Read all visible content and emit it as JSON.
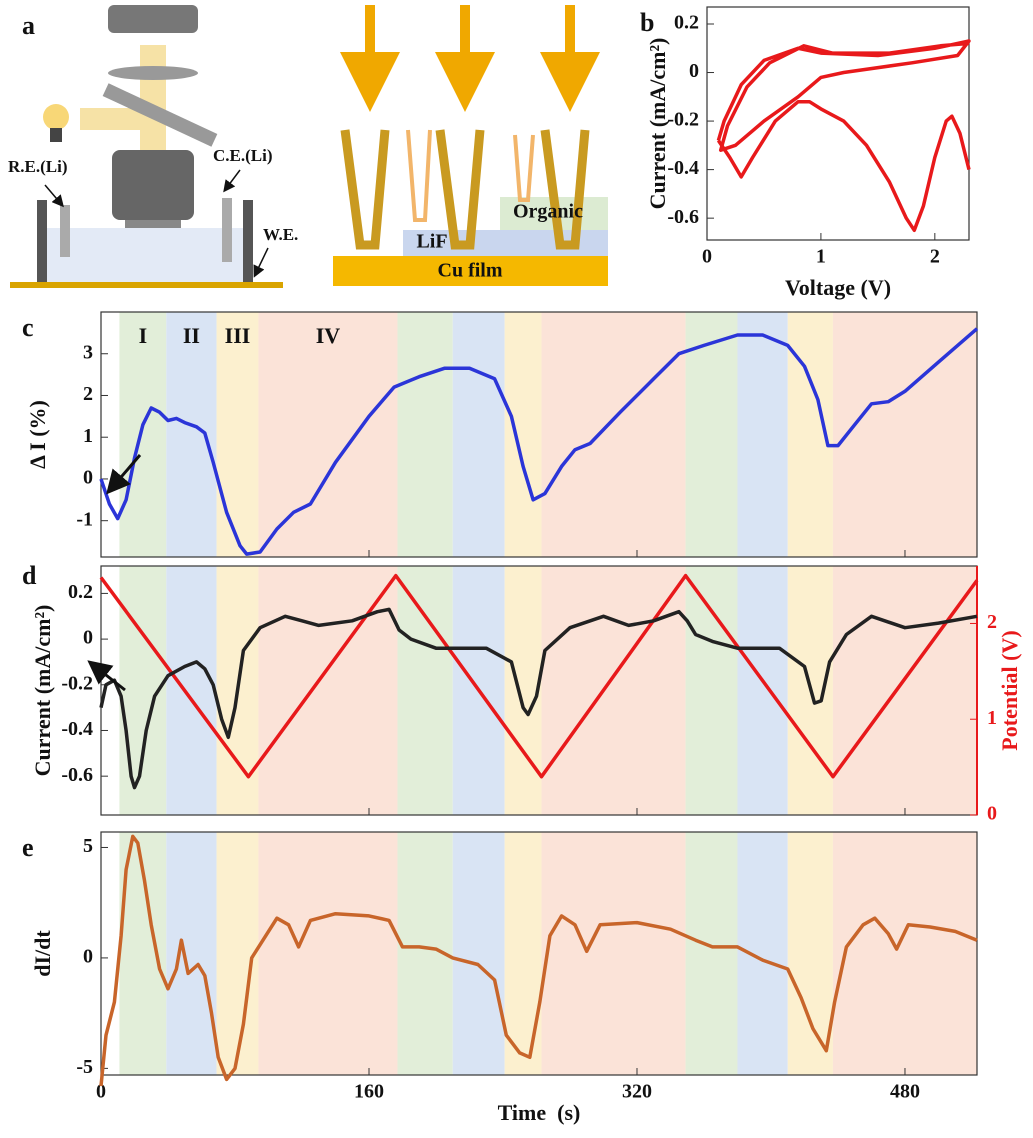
{
  "diagram": {
    "panel": "a",
    "reference_electrode": "R.E.(Li)",
    "counter_electrode": "C.E.(Li)",
    "working_electrode": "W.E.",
    "layer_organic": "Organic",
    "layer_lif": "LiF",
    "layer_cu": "Cu film"
  },
  "chart_data": [
    {
      "type": "line",
      "panel": "b",
      "xlabel": "Voltage (V)",
      "ylabel": "Current (mA/cm²)",
      "xlim": [
        0,
        2.3
      ],
      "ylim": [
        -0.69,
        0.27
      ],
      "xticks": [
        0,
        1,
        2
      ],
      "yticks": [
        0.2,
        0,
        -0.2,
        -0.4,
        -0.6
      ],
      "series": [
        {
          "color": "#e8191b",
          "x": [
            2.3,
            2.22,
            2.15,
            2.1,
            2.0,
            1.9,
            1.82,
            1.75,
            1.6,
            1.4,
            1.2,
            1.0,
            0.9,
            0.8,
            0.6,
            0.4,
            0.3,
            0.2,
            0.1
          ],
          "values": [
            -0.4,
            -0.25,
            -0.18,
            -0.2,
            -0.35,
            -0.55,
            -0.65,
            -0.6,
            -0.45,
            -0.3,
            -0.2,
            -0.15,
            -0.12,
            -0.12,
            -0.2,
            -0.35,
            -0.43,
            -0.35,
            -0.28
          ]
        },
        {
          "color": "#e8191b",
          "x": [
            0.1,
            0.15,
            0.3,
            0.5,
            0.8,
            1.0,
            1.5,
            2.0,
            2.3,
            2.2,
            1.8,
            1.2,
            1.0,
            0.8,
            0.5,
            0.25,
            0.12,
            0.18,
            0.35,
            0.55,
            0.85,
            1.1,
            1.6,
            2.05,
            2.3
          ],
          "values": [
            -0.28,
            -0.2,
            -0.05,
            0.05,
            0.1,
            0.08,
            0.07,
            0.1,
            0.13,
            0.07,
            0.04,
            0.0,
            -0.02,
            -0.1,
            -0.2,
            -0.3,
            -0.32,
            -0.22,
            -0.06,
            0.04,
            0.11,
            0.08,
            0.08,
            0.11,
            0.12
          ]
        }
      ]
    },
    {
      "type": "line",
      "panel": "c",
      "ylabel": "Δ I (%)",
      "xlim": [
        0,
        523
      ],
      "ylim": [
        -1.87,
        4.0
      ],
      "xticks": [
        0,
        160,
        320,
        480
      ],
      "xtick_labels": false,
      "yticks": [
        -1,
        0,
        1,
        2,
        3
      ],
      "regions": [
        {
          "start": 11,
          "end": 39,
          "color": "#e2eed9",
          "label": "I"
        },
        {
          "start": 39,
          "end": 69,
          "color": "#d9e4f4",
          "label": "II"
        },
        {
          "start": 69,
          "end": 94,
          "color": "#fcf0cf",
          "label": "III"
        },
        {
          "start": 94,
          "end": 177,
          "color": "#fbe3d8",
          "label": "IV"
        },
        {
          "start": 177,
          "end": 210,
          "color": "#e2eed9"
        },
        {
          "start": 210,
          "end": 241,
          "color": "#d9e4f4"
        },
        {
          "start": 241,
          "end": 263,
          "color": "#fcf0cf"
        },
        {
          "start": 263,
          "end": 349,
          "color": "#fbe3d8"
        },
        {
          "start": 349,
          "end": 380,
          "color": "#e2eed9"
        },
        {
          "start": 380,
          "end": 410,
          "color": "#d9e4f4"
        },
        {
          "start": 410,
          "end": 437,
          "color": "#fcf0cf"
        },
        {
          "start": 437,
          "end": 523,
          "color": "#fbe3d8"
        }
      ],
      "series": [
        {
          "color": "#2b35d8",
          "x": [
            0,
            5,
            10,
            15,
            20,
            25,
            30,
            35,
            40,
            45,
            50,
            57,
            62,
            67,
            75,
            83,
            87,
            95,
            105,
            115,
            125,
            140,
            160,
            175,
            190,
            205,
            220,
            235,
            245,
            252,
            258,
            265,
            275,
            283,
            292,
            310,
            330,
            345,
            360,
            380,
            395,
            410,
            420,
            428,
            434,
            440,
            450,
            460,
            470,
            480,
            500,
            523
          ],
          "values": [
            0,
            -0.6,
            -0.95,
            -0.5,
            0.5,
            1.3,
            1.7,
            1.6,
            1.4,
            1.45,
            1.35,
            1.25,
            1.1,
            0.4,
            -0.8,
            -1.6,
            -1.8,
            -1.75,
            -1.2,
            -0.8,
            -0.6,
            0.4,
            1.5,
            2.2,
            2.45,
            2.65,
            2.65,
            2.4,
            1.5,
            0.3,
            -0.5,
            -0.35,
            0.3,
            0.7,
            0.85,
            1.6,
            2.4,
            3.0,
            3.2,
            3.45,
            3.45,
            3.2,
            2.7,
            1.9,
            0.8,
            0.8,
            1.3,
            1.8,
            1.85,
            2.1,
            2.8,
            3.6
          ]
        }
      ]
    },
    {
      "type": "line",
      "panel": "d",
      "ylabel": "Current (mA/cm²)",
      "y2label": "Potential (V)",
      "y2color": "#e8191b",
      "xlim": [
        0,
        523
      ],
      "ylim": [
        -0.77,
        0.32
      ],
      "y2lim": [
        0,
        2.6
      ],
      "xticks": [
        0,
        160,
        320,
        480
      ],
      "xtick_labels": false,
      "yticks": [
        0.2,
        0,
        -0.2,
        -0.4,
        -0.6
      ],
      "y2ticks": [
        0,
        1,
        2
      ],
      "series": [
        {
          "color": "#e8191b",
          "axis": "y2",
          "x": [
            0,
            88,
            176,
            263,
            349,
            437,
            523
          ],
          "values": [
            2.48,
            0.4,
            2.5,
            0.4,
            2.5,
            0.4,
            2.45
          ]
        },
        {
          "color": "#222222",
          "x": [
            0,
            3,
            8,
            12,
            15,
            18,
            20,
            23,
            27,
            32,
            40,
            50,
            57,
            62,
            67,
            72,
            76,
            80,
            85,
            95,
            110,
            120,
            130,
            150,
            165,
            172,
            178,
            185,
            200,
            230,
            245,
            252,
            255,
            260,
            265,
            280,
            300,
            315,
            330,
            345,
            350,
            355,
            365,
            380,
            405,
            420,
            426,
            430,
            435,
            445,
            460,
            480,
            500,
            523
          ],
          "values": [
            -0.3,
            -0.2,
            -0.18,
            -0.25,
            -0.4,
            -0.6,
            -0.65,
            -0.6,
            -0.4,
            -0.25,
            -0.16,
            -0.12,
            -0.1,
            -0.13,
            -0.2,
            -0.35,
            -0.43,
            -0.3,
            -0.05,
            0.05,
            0.1,
            0.08,
            0.06,
            0.08,
            0.12,
            0.13,
            0.04,
            0.0,
            -0.04,
            -0.04,
            -0.1,
            -0.3,
            -0.33,
            -0.25,
            -0.05,
            0.05,
            0.1,
            0.06,
            0.08,
            0.12,
            0.08,
            0.02,
            -0.01,
            -0.04,
            -0.04,
            -0.12,
            -0.28,
            -0.27,
            -0.1,
            0.02,
            0.1,
            0.05,
            0.07,
            0.1
          ]
        }
      ]
    },
    {
      "type": "line",
      "panel": "e",
      "ylabel": "dI/dt",
      "xlabel": "Time  (s)",
      "xlim": [
        0,
        523
      ],
      "ylim": [
        -5.3,
        5.7
      ],
      "xticks": [
        0,
        160,
        320,
        480
      ],
      "yticks": [
        -5,
        0,
        5
      ],
      "series": [
        {
          "color": "#c8652a",
          "x": [
            0,
            3,
            8,
            12,
            15,
            19,
            22,
            26,
            30,
            35,
            40,
            45,
            48,
            52,
            58,
            62,
            66,
            70,
            75,
            80,
            85,
            90,
            95,
            105,
            112,
            118,
            125,
            140,
            160,
            172,
            180,
            190,
            200,
            210,
            225,
            235,
            242,
            250,
            256,
            262,
            268,
            275,
            283,
            290,
            298,
            320,
            340,
            355,
            365,
            380,
            395,
            410,
            418,
            425,
            433,
            438,
            445,
            455,
            462,
            470,
            475,
            482,
            495,
            510,
            523
          ],
          "values": [
            -5.8,
            -3.5,
            -2,
            1,
            4,
            5.5,
            5.2,
            3.5,
            1.5,
            -0.5,
            -1.4,
            -0.5,
            0.8,
            -0.7,
            -0.3,
            -0.8,
            -2.5,
            -4.5,
            -5.5,
            -5,
            -3,
            0,
            0.6,
            1.8,
            1.5,
            0.5,
            1.7,
            2,
            1.9,
            1.7,
            0.5,
            0.5,
            0.4,
            0,
            -0.3,
            -1,
            -3.5,
            -4.3,
            -4.5,
            -2,
            1,
            1.9,
            1.5,
            0.3,
            1.5,
            1.6,
            1.3,
            0.8,
            0.5,
            0.5,
            -0.1,
            -0.5,
            -1.8,
            -3.2,
            -4.2,
            -2,
            0.5,
            1.5,
            1.8,
            1.1,
            0.4,
            1.5,
            1.4,
            1.2,
            0.8
          ]
        }
      ]
    }
  ]
}
